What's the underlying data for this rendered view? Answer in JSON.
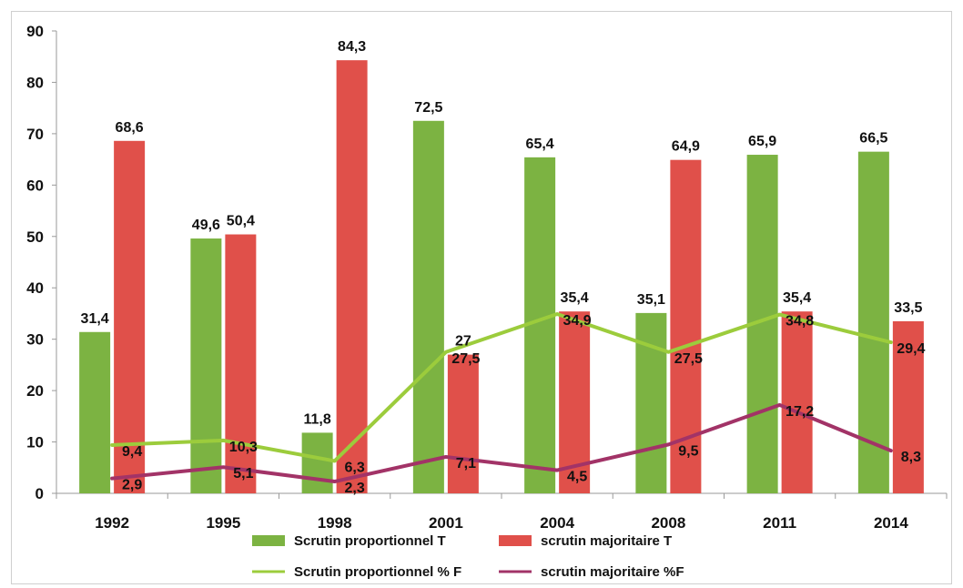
{
  "chart_data": {
    "type": "bar",
    "title": "",
    "xlabel": "",
    "ylabel": "",
    "ylim": [
      0,
      90
    ],
    "yticks": [
      0,
      10,
      20,
      30,
      40,
      50,
      60,
      70,
      80,
      90
    ],
    "grid": false,
    "legend_position": "bottom",
    "categories": [
      "1992",
      "1995",
      "1998",
      "2001",
      "2004",
      "2008",
      "2011",
      "2014"
    ],
    "series": [
      {
        "name": "Scrutin proportionnel T",
        "kind": "bar",
        "color": "#7cb342",
        "values": [
          31.4,
          49.6,
          11.8,
          72.5,
          65.4,
          35.1,
          65.9,
          66.5
        ],
        "labels": [
          "31,4",
          "49,6",
          "11,8",
          "72,5",
          "65,4",
          "35,1",
          "65,9",
          "66,5"
        ]
      },
      {
        "name": "scrutin majoritaire T",
        "kind": "bar",
        "color": "#e0504a",
        "values": [
          68.6,
          50.4,
          84.3,
          27,
          35.4,
          64.9,
          35.4,
          33.5
        ],
        "labels": [
          "68,6",
          "50,4",
          "84,3",
          "27",
          "35,4",
          "64,9",
          "35,4",
          "33,5"
        ]
      },
      {
        "name": "Scrutin proportionnel % F",
        "kind": "line",
        "color": "#9ccc3c",
        "values": [
          9.4,
          10.3,
          6.3,
          27.5,
          34.9,
          27.5,
          34.8,
          29.4
        ],
        "labels": [
          "9,4",
          "10,3",
          "6,3",
          "27,5",
          "34,9",
          "27,5",
          "34,8",
          "29,4"
        ]
      },
      {
        "name": "scrutin majoritaire %F",
        "kind": "line",
        "color": "#a23367",
        "values": [
          2.9,
          5.1,
          2.3,
          7.1,
          4.5,
          9.5,
          17.2,
          8.3
        ],
        "labels": [
          "2,9",
          "5,1",
          "2,3",
          "7,1",
          "4,5",
          "9,5",
          "17,2",
          "8,3"
        ]
      }
    ]
  }
}
